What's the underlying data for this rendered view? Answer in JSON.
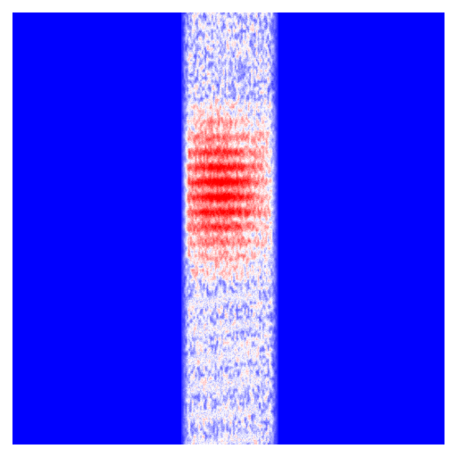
{
  "chart_data": {
    "type": "heatmap",
    "title": "",
    "xlabel": "",
    "ylabel": "",
    "colormap": "bwr",
    "colors": {
      "low": "#0000ff",
      "mid": "#ffffff",
      "high": "#ff0000"
    },
    "value_range": [
      -1,
      1
    ],
    "grid": false,
    "colorbar": false,
    "description_values": {
      "background_value": -1,
      "band_column_range": [
        0.39,
        0.615
      ],
      "band_noise_mean": -0.15,
      "hot_region": {
        "row_range": [
          0.2,
          0.62
        ],
        "peak_row": 0.41,
        "peak_col": 0.48,
        "peak_value": 1.0
      }
    }
  }
}
